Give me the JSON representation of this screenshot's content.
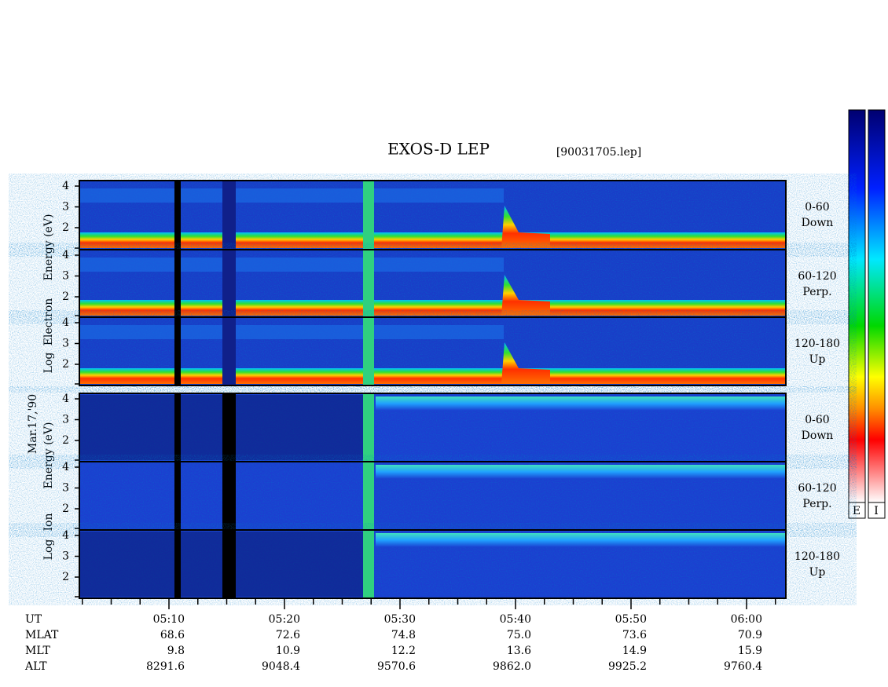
{
  "title": "EXOS-D LEP",
  "file": "[90031705.lep]",
  "date": "Mar.17,'90",
  "groups": [
    {
      "axis_words": [
        "Log",
        "Electron",
        "Energy (eV)"
      ],
      "panels": [
        {
          "yticks": [
            "4",
            "3",
            "2"
          ],
          "label": [
            "0-60",
            "Down"
          ]
        },
        {
          "yticks": [
            "4",
            "3",
            "2"
          ],
          "label": [
            "60-120",
            "Perp."
          ]
        },
        {
          "yticks": [
            "4",
            "3",
            "2"
          ],
          "label": [
            "120-180",
            "Up"
          ]
        }
      ]
    },
    {
      "axis_words": [
        "Log",
        "Ion",
        "Energy (eV)"
      ],
      "panels": [
        {
          "yticks": [
            "4",
            "3",
            "2"
          ],
          "label": [
            "0-60",
            "Down"
          ]
        },
        {
          "yticks": [
            "4",
            "3",
            "2"
          ],
          "label": [
            "60-120",
            "Perp."
          ]
        },
        {
          "yticks": [
            "4",
            "3",
            "2"
          ],
          "label": [
            "120-180",
            "Up"
          ]
        }
      ]
    }
  ],
  "time_axis": {
    "rows": [
      {
        "name": "UT",
        "values": [
          "05:10",
          "05:20",
          "05:30",
          "05:40",
          "05:50",
          "06:00"
        ]
      },
      {
        "name": "MLAT",
        "values": [
          "68.6",
          "72.6",
          "74.8",
          "75.0",
          "73.6",
          "70.9"
        ]
      },
      {
        "name": "MLT",
        "values": [
          "9.8",
          "10.9",
          "12.2",
          "13.6",
          "14.9",
          "15.9"
        ]
      },
      {
        "name": "ALT",
        "values": [
          "8291.6",
          "9048.4",
          "9570.6",
          "9862.0",
          "9925.2",
          "9760.4"
        ]
      }
    ]
  },
  "colorbars": [
    "E",
    "I"
  ]
}
